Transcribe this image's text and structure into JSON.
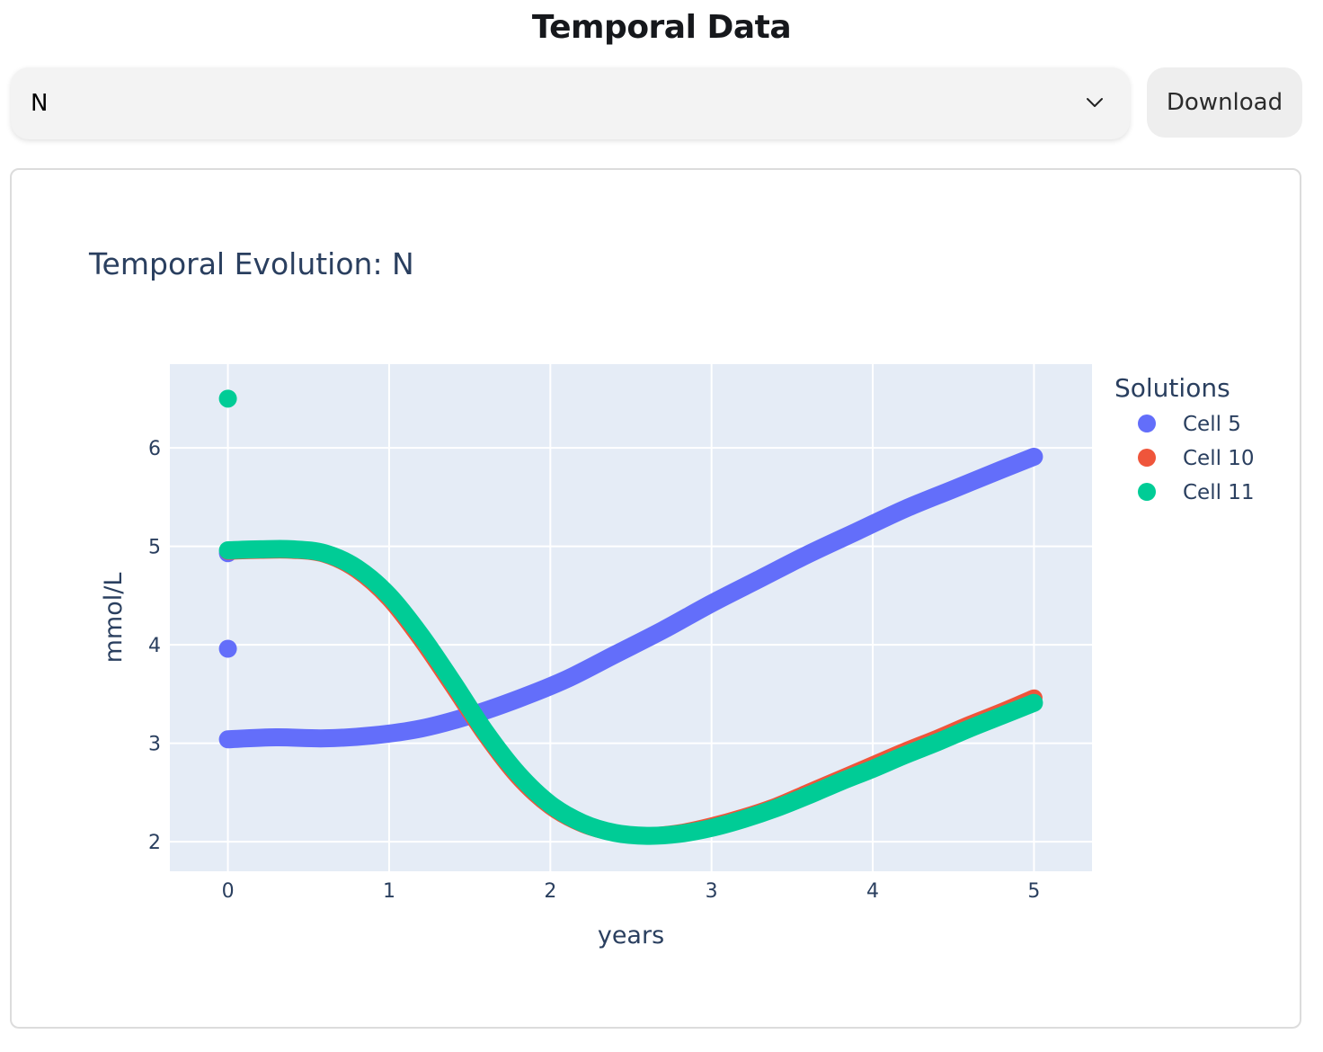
{
  "page": {
    "title": "Temporal Data"
  },
  "controls": {
    "select_value": "N",
    "download_label": "Download"
  },
  "icons": {
    "dropdown": "chevron-down-icon"
  },
  "chart_data": {
    "type": "scatter",
    "title": "Temporal Evolution: N",
    "xlabel": "years",
    "ylabel": "mmol/L",
    "xlim": [
      -0.36,
      5.36
    ],
    "ylim": [
      1.7,
      6.85
    ],
    "xticks": [
      0,
      1,
      2,
      3,
      4,
      5
    ],
    "yticks": [
      2,
      3,
      4,
      5,
      6
    ],
    "grid": true,
    "legend": {
      "title": "Solutions",
      "placement": "top-right outside"
    },
    "series": [
      {
        "name": "Cell 5",
        "color": "#636efa",
        "x": [
          0.0,
          0.3,
          0.6,
          0.9,
          1.2,
          1.5,
          1.8,
          2.1,
          2.4,
          2.7,
          3.0,
          3.3,
          3.6,
          3.9,
          4.2,
          4.5,
          4.8,
          5.0
        ],
        "y": [
          3.04,
          3.06,
          3.05,
          3.08,
          3.15,
          3.28,
          3.45,
          3.65,
          3.9,
          4.15,
          4.42,
          4.67,
          4.92,
          5.15,
          5.38,
          5.58,
          5.78,
          5.91
        ],
        "isolated_points": [
          {
            "x": 0.0,
            "y": 4.93
          },
          {
            "x": 0.0,
            "y": 3.96
          }
        ]
      },
      {
        "name": "Cell 10",
        "color": "#ef553b",
        "x": [
          0.0,
          0.2,
          0.4,
          0.6,
          0.8,
          1.0,
          1.2,
          1.4,
          1.6,
          1.8,
          2.0,
          2.2,
          2.4,
          2.6,
          2.8,
          3.0,
          3.2,
          3.4,
          3.6,
          3.8,
          4.0,
          4.2,
          4.4,
          4.6,
          4.8,
          5.0
        ],
        "y": [
          4.95,
          4.96,
          4.96,
          4.92,
          4.76,
          4.47,
          4.05,
          3.57,
          3.08,
          2.66,
          2.36,
          2.18,
          2.09,
          2.06,
          2.09,
          2.16,
          2.25,
          2.36,
          2.5,
          2.64,
          2.78,
          2.92,
          3.05,
          3.19,
          3.32,
          3.46
        ],
        "isolated_points": []
      },
      {
        "name": "Cell 11",
        "color": "#00cc96",
        "x": [
          0.0,
          0.2,
          0.4,
          0.6,
          0.8,
          1.0,
          1.2,
          1.4,
          1.6,
          1.8,
          2.0,
          2.2,
          2.4,
          2.6,
          2.8,
          3.0,
          3.2,
          3.4,
          3.6,
          3.8,
          4.0,
          4.2,
          4.4,
          4.6,
          4.8,
          5.0
        ],
        "y": [
          4.96,
          4.97,
          4.97,
          4.93,
          4.78,
          4.5,
          4.09,
          3.61,
          3.11,
          2.69,
          2.38,
          2.19,
          2.09,
          2.06,
          2.08,
          2.14,
          2.23,
          2.34,
          2.47,
          2.61,
          2.74,
          2.88,
          3.01,
          3.15,
          3.28,
          3.41
        ],
        "isolated_points": [
          {
            "x": 0.0,
            "y": 6.5
          }
        ]
      }
    ]
  }
}
